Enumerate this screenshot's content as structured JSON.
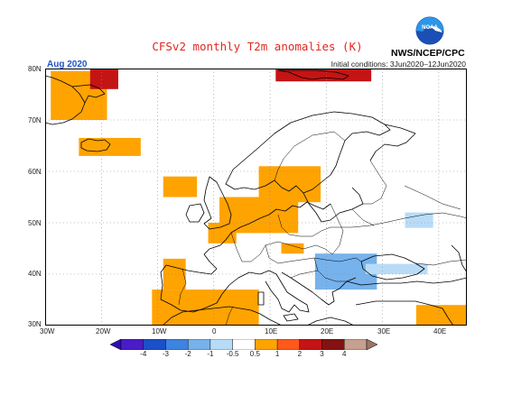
{
  "title": "CFSv2 monthly T2m anomalies (K)",
  "month": "Aug 2020",
  "initial_conditions": "Initial conditions: 3Jun2020–12Jun2020",
  "organization": "NWS/NCEP/CPC",
  "logo_text": "NOAA",
  "map": {
    "region": "Europe",
    "lat_range": [
      30,
      80
    ],
    "lon_range": [
      -30,
      45
    ],
    "lat_labels": [
      "80N",
      "70N",
      "60N",
      "50N",
      "40N",
      "30N"
    ],
    "lon_labels": [
      "30W",
      "20W",
      "10W",
      "0",
      "10E",
      "20E",
      "30E",
      "40E"
    ],
    "graticule": "dotted"
  },
  "colorbar": {
    "labels": [
      "-4",
      "-3",
      "-2",
      "-1",
      "-0.5",
      "0.5",
      "1",
      "2",
      "3",
      "4"
    ],
    "colors": [
      "#4a1cc8",
      "#1b50c9",
      "#3d83e0",
      "#76b2ec",
      "#b8dcf8",
      "#ffffff",
      "#ffa300",
      "#ff5a1a",
      "#c41414",
      "#851212",
      "#c8a090"
    ],
    "low_arrow_color": "#2e0eb4",
    "high_arrow_color": "#9b7468"
  },
  "anomaly_patches": [
    {
      "name": "greenland-east-coast",
      "value": 1,
      "lon": [
        -29,
        -19
      ],
      "lat": [
        70,
        79.5
      ]
    },
    {
      "name": "greenland-northeast",
      "value": 3,
      "lon": [
        -22,
        -17
      ],
      "lat": [
        76,
        80
      ]
    },
    {
      "name": "iceland",
      "value": 1,
      "lon": [
        -24,
        -13
      ],
      "lat": [
        63,
        66.5
      ]
    },
    {
      "name": "svalbard",
      "value": 3,
      "lon": [
        11,
        28
      ],
      "lat": [
        77.5,
        80
      ]
    },
    {
      "name": "scandinavia-south",
      "value": 1,
      "lon": [
        8,
        19
      ],
      "lat": [
        54,
        61
      ]
    },
    {
      "name": "british-isles",
      "value": 1,
      "lon": [
        -9,
        -3
      ],
      "lat": [
        55,
        59
      ]
    },
    {
      "name": "benelux-germany",
      "value": 1,
      "lon": [
        1,
        15
      ],
      "lat": [
        48,
        55
      ]
    },
    {
      "name": "france-west",
      "value": 1,
      "lon": [
        -1,
        4
      ],
      "lat": [
        46,
        50
      ]
    },
    {
      "name": "iberia",
      "value": 1,
      "lon": [
        -9,
        -5
      ],
      "lat": [
        37,
        43
      ]
    },
    {
      "name": "north-africa",
      "value": 1,
      "lon": [
        -11,
        8
      ],
      "lat": [
        30,
        37
      ]
    },
    {
      "name": "italy-adriatic",
      "value": 1,
      "lon": [
        12,
        16
      ],
      "lat": [
        44,
        46
      ]
    },
    {
      "name": "middle-east",
      "value": 1,
      "lon": [
        36,
        45
      ],
      "lat": [
        30,
        34
      ]
    },
    {
      "name": "balkans-cool",
      "value": -1,
      "lon": [
        18,
        29
      ],
      "lat": [
        37,
        44
      ]
    },
    {
      "name": "black-sea-cool",
      "value": -0.5,
      "lon": [
        27,
        38
      ],
      "lat": [
        40,
        42
      ]
    },
    {
      "name": "russia-cool",
      "value": -0.5,
      "lon": [
        34,
        39
      ],
      "lat": [
        49,
        52
      ]
    }
  ]
}
